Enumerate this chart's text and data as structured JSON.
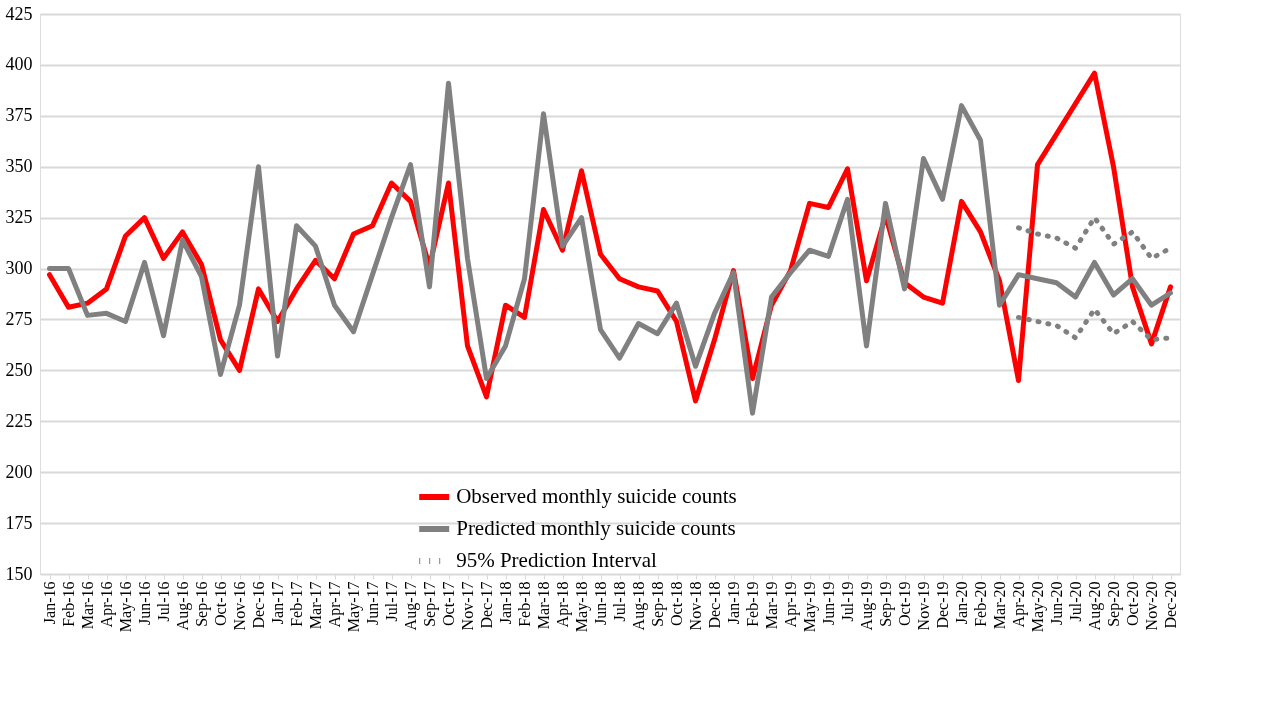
{
  "chart_data": {
    "type": "line",
    "categories": [
      "Jan-16",
      "Feb-16",
      "Mar-16",
      "Apr-16",
      "May-16",
      "Jun-16",
      "Jul-16",
      "Aug-16",
      "Sep-16",
      "Oct-16",
      "Nov-16",
      "Dec-16",
      "Jan-17",
      "Feb-17",
      "Mar-17",
      "Apr-17",
      "May-17",
      "Jun-17",
      "Jul-17",
      "Aug-17",
      "Sep-17",
      "Oct-17",
      "Nov-17",
      "Dec-17",
      "Jan-18",
      "Feb-18",
      "Mar-18",
      "Apr-18",
      "May-18",
      "Jun-18",
      "Jul-18",
      "Aug-18",
      "Sep-18",
      "Oct-18",
      "Nov-18",
      "Dec-18",
      "Jan-19",
      "Feb-19",
      "Mar-19",
      "Apr-19",
      "May-19",
      "Jun-19",
      "Jul-19",
      "Aug-19",
      "Sep-19",
      "Oct-19",
      "Nov-19",
      "Dec-19",
      "Jan-20",
      "Feb-20",
      "Mar-20",
      "Apr-20",
      "May-20",
      "Jun-20",
      "Jul-20",
      "Aug-20",
      "Sep-20",
      "Oct-20",
      "Nov-20",
      "Dec-20"
    ],
    "series": [
      {
        "name": "Observed monthly suicide counts",
        "color": "#ff0000",
        "line_style": "solid",
        "values": [
          297,
          281,
          283,
          290,
          316,
          325,
          305,
          318,
          302,
          265,
          250,
          290,
          274,
          290,
          304,
          295,
          317,
          321,
          342,
          333,
          301,
          342,
          262,
          237,
          282,
          276,
          329,
          309,
          348,
          307,
          295,
          291,
          289,
          274,
          235,
          265,
          299,
          246,
          282,
          299,
          332,
          330,
          349,
          294,
          326,
          293,
          286,
          283,
          333,
          318,
          294,
          245,
          351,
          366,
          381,
          396,
          350,
          291,
          263,
          291
        ]
      },
      {
        "name": "Predicted monthly suicide counts",
        "color": "#808080",
        "line_style": "solid",
        "values": [
          300,
          300,
          277,
          278,
          274,
          303,
          267,
          314,
          296,
          248,
          282,
          350,
          257,
          321,
          311,
          282,
          269,
          297,
          325,
          351,
          291,
          391,
          305,
          246,
          262,
          295,
          376,
          311,
          325,
          270,
          256,
          273,
          268,
          283,
          252,
          278,
          298,
          229,
          286,
          298,
          309,
          306,
          334,
          262,
          332,
          290,
          354,
          334,
          380,
          363,
          282,
          297,
          295,
          293,
          286,
          303,
          287,
          295,
          282,
          288
        ]
      },
      {
        "name": "95% Prediction Interval",
        "color": "#808080",
        "line_style": "dotted",
        "values": [
          null,
          null,
          null,
          null,
          null,
          null,
          null,
          null,
          null,
          null,
          null,
          null,
          null,
          null,
          null,
          null,
          null,
          null,
          null,
          null,
          null,
          null,
          null,
          null,
          null,
          null,
          null,
          null,
          null,
          null,
          null,
          null,
          null,
          null,
          null,
          null,
          null,
          null,
          null,
          null,
          null,
          null,
          null,
          null,
          null,
          null,
          null,
          null,
          null,
          null,
          null,
          320,
          317,
          315,
          310,
          325,
          312,
          318,
          305,
          310
        ]
      },
      {
        "color": "#808080",
        "line_style": "dotted",
        "values": [
          null,
          null,
          null,
          null,
          null,
          null,
          null,
          null,
          null,
          null,
          null,
          null,
          null,
          null,
          null,
          null,
          null,
          null,
          null,
          null,
          null,
          null,
          null,
          null,
          null,
          null,
          null,
          null,
          null,
          null,
          null,
          null,
          null,
          null,
          null,
          null,
          null,
          null,
          null,
          null,
          null,
          null,
          null,
          null,
          null,
          null,
          null,
          null,
          null,
          null,
          null,
          276,
          274,
          272,
          266,
          280,
          268,
          274,
          265,
          266
        ]
      }
    ],
    "ylim": [
      150,
      425
    ],
    "yticks": [
      150,
      175,
      200,
      225,
      250,
      275,
      300,
      325,
      350,
      375,
      400,
      425
    ],
    "grid": "y",
    "legend": "bottom",
    "marker": "none"
  }
}
